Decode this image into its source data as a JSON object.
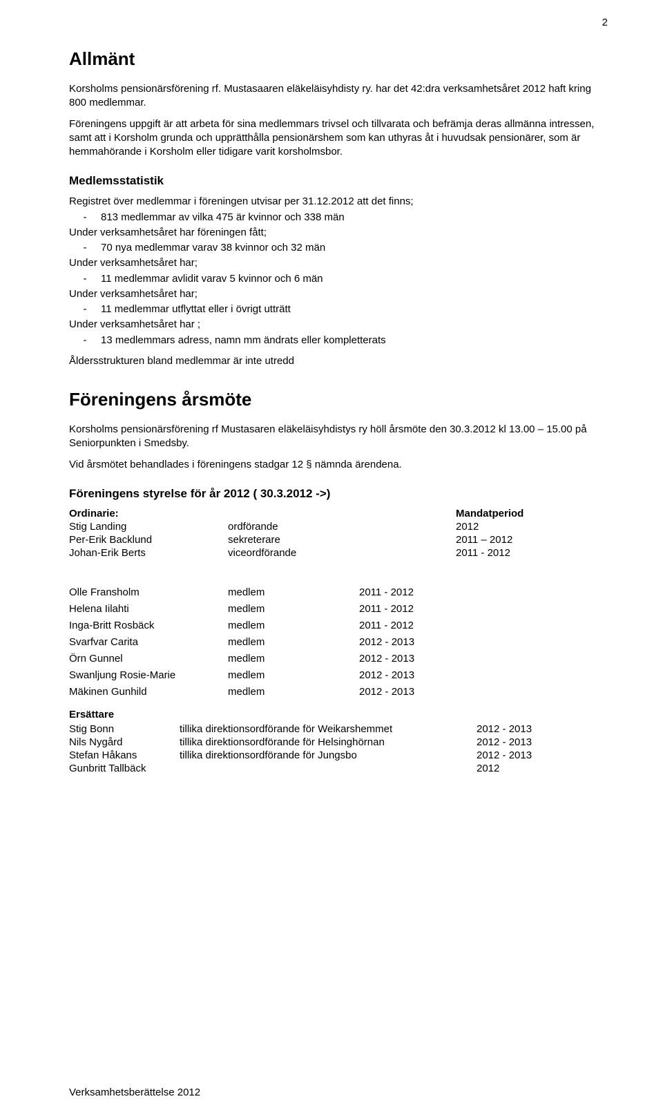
{
  "page_number": "2",
  "heading_allmant": "Allmänt",
  "allmant_p1": "Korsholms pensionärsförening rf. Mustasaaren eläkeläisyhdisty ry. har det 42:dra verksamhetsåret 2012 haft kring 800 medlemmar.",
  "allmant_p2": "Föreningens uppgift är att arbeta för sina medlemmars trivsel och tillvarata och befrämja deras allmänna intressen, samt att i Korsholm grunda och upprätthålla pensionärshem som kan uthyras åt i huvudsak pensionärer, som är hemmahörande i Korsholm eller tidigare varit korsholmsbor.",
  "heading_medlemsstatistik": "Medlemsstatistik",
  "ms_intro": "Registret över medlemmar i föreningen utvisar per 31.12.2012 att det finns;",
  "ms_l1": "813 medlemmar av vilka 475 är kvinnor och 338 män",
  "ms_l2": "Under verksamhetsåret har föreningen fått;",
  "ms_l3": "70 nya medlemmar varav 38 kvinnor och 32 män",
  "ms_l4": "Under verksamhetsåret har;",
  "ms_l5": "11 medlemmar avlidit varav 5 kvinnor och 6 män",
  "ms_l6": "Under verksamhetsåret har;",
  "ms_l7": "11 medlemmar utflyttat eller i övrigt utträtt",
  "ms_l8": "Under verksamhetsåret har ;",
  "ms_l9": "13 medlemmars adress, namn mm ändrats eller kompletterats",
  "ms_agesstruct": "Åldersstrukturen bland medlemmar är inte utredd",
  "heading_arsmote": "Föreningens årsmöte",
  "arsmote_p1": "Korsholms pensionärsförening rf  Mustasaren eläkeläisyhdistys ry höll årsmöte den 30.3.2012 kl 13.00 – 15.00 på Seniorpunkten i Smedsby.",
  "arsmote_p2": "Vid årsmötet behandlades i föreningens stadgar 12 § nämnda  ärendena.",
  "heading_styrelse": "Föreningens styrelse för år 2012    ( 30.3.2012  ->)",
  "ord_label": "Ordinarie:",
  "mandat_label": "Mandatperiod",
  "styrelse_rows": [
    {
      "name": "Stig Landing",
      "role": "ordförande",
      "period": "2012"
    },
    {
      "name": "Per-Erik  Backlund",
      "role": "sekreterare",
      "period": "2011 – 2012"
    },
    {
      "name": "Johan-Erik Berts",
      "role": "viceordförande",
      "period": "2011 -  2012"
    }
  ],
  "board_rows": [
    {
      "name": "Olle Fransholm",
      "role": "medlem",
      "period": "2011 - 2012"
    },
    {
      "name": "Helena Iilahti",
      "role": "medlem",
      "period": "2011 - 2012"
    },
    {
      "name": "Inga-Britt Rosbäck",
      "role": "medlem",
      "period": "2011 - 2012"
    },
    {
      "name": "Svarfvar Carita",
      "role": "medlem",
      "period": "2012 - 2013"
    },
    {
      "name": "Örn Gunnel",
      "role": "medlem",
      "period": "2012 - 2013"
    },
    {
      "name": "Swanljung Rosie-Marie",
      "role": "medlem",
      "period": "2012 - 2013"
    },
    {
      "name": "Mäkinen Gunhild",
      "role": "medlem",
      "period": "2012 - 2013"
    }
  ],
  "ers_label": "Ersättare",
  "ers_rows": [
    {
      "name": "Stig Bonn",
      "role": "tillika direktionsordförande för Weikarshemmet",
      "period": "2012 - 2013"
    },
    {
      "name": "Nils Nygård",
      "role": "tillika direktionsordförande för Helsinghörnan",
      "period": " 2012  - 2013"
    },
    {
      "name": "Stefan Håkans",
      "role": "tillika direktionsordförande för Jungsbo",
      "period": "2012 - 2013"
    },
    {
      "name": "Gunbritt  Tallbäck",
      "role": "",
      "period": " 2012"
    }
  ],
  "footer": "Verksamhetsberättelse 2012",
  "dash": "-"
}
